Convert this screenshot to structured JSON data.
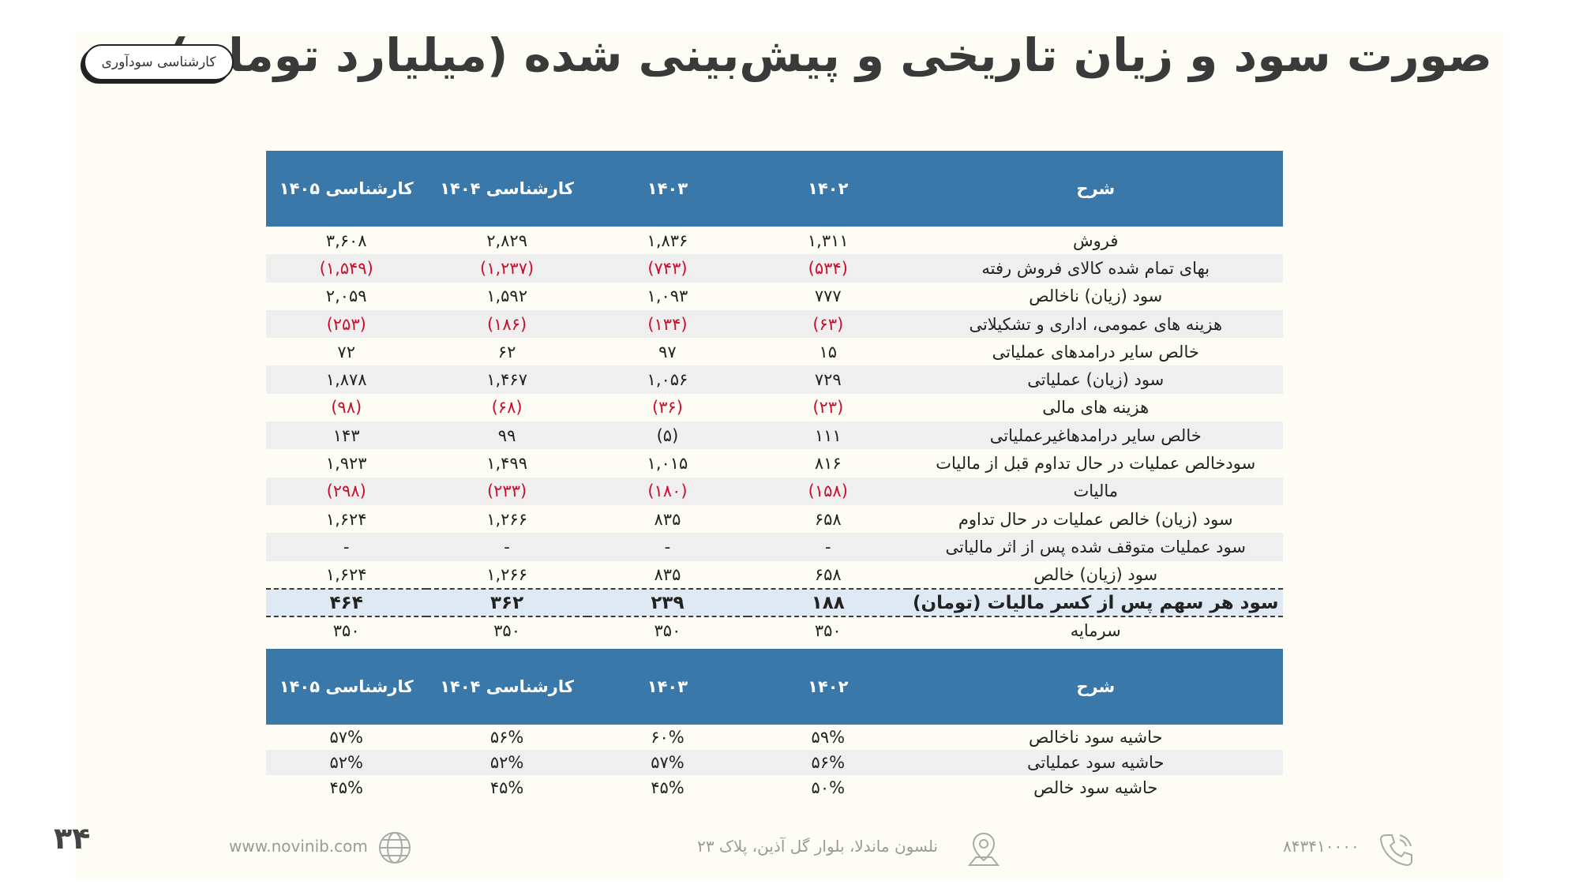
{
  "header": {
    "title": "صورت سود و زیان تاریخی و پیش‌بینی شده (میلیارد تومان)",
    "badge": "کارشناسی سودآوری"
  },
  "main_table": {
    "headers": [
      "شرح",
      "۱۴۰۲",
      "۱۴۰۳",
      "کارشناسی ۱۴۰۴",
      "کارشناسی ۱۴۰۵"
    ],
    "rows": [
      [
        "فروش",
        "۱,۳۱۱",
        "۱,۸۳۶",
        "۲,۸۲۹",
        "۳,۶۰۸"
      ],
      [
        "بهای تمام شده کالای فروش رفته",
        "(۵۳۴)",
        "(۷۴۳)",
        "(۱,۲۳۷)",
        "(۱,۵۴۹)"
      ],
      [
        "سود (زیان) ناخالص",
        "۷۷۷",
        "۱,۰۹۳",
        "۱,۵۹۲",
        "۲,۰۵۹"
      ],
      [
        "هزینه های عمومی، اداری و تشکیلاتی",
        "(۶۳)",
        "(۱۳۴)",
        "(۱۸۶)",
        "(۲۵۳)"
      ],
      [
        "خالص سایر درامدهای  عملیاتی",
        "۱۵",
        "۹۷",
        "۶۲",
        "۷۲"
      ],
      [
        "سود (زیان) عملیاتی",
        "۷۲۹",
        "۱,۰۵۶",
        "۱,۴۶۷",
        "۱,۸۷۸"
      ],
      [
        "هزینه های مالی",
        "(۲۳)",
        "(۳۶)",
        "(۶۸)",
        "(۹۸)"
      ],
      [
        "خالص سایر درامدهاغیرعملیاتی",
        "۱۱۱",
        "(۵)",
        "۹۹",
        "۱۴۳"
      ],
      [
        "سودخالص عملیات در حال تداوم قبل از مالیات",
        "۸۱۶",
        "۱,۰۱۵",
        "۱,۴۹۹",
        "۱,۹۲۳"
      ],
      [
        "مالیات",
        "(۱۵۸)",
        "(۱۸۰)",
        "(۲۳۳)",
        "(۲۹۸)"
      ],
      [
        "سود (زیان) خالص عملیات در حال تداوم",
        "۶۵۸",
        "۸۳۵",
        "۱,۲۶۶",
        "۱,۶۲۴"
      ],
      [
        "سود عملیات متوقف شده پس از اثر مالیاتی",
        "-",
        "-",
        "-",
        "-"
      ],
      [
        "سود (زیان) خالص",
        "۶۵۸",
        "۸۳۵",
        "۱,۲۶۶",
        "۱,۶۲۴"
      ],
      [
        "سود هر سهم پس از کسر مالیات (تومان)",
        "۱۸۸",
        "۲۳۹",
        "۳۶۲",
        "۴۶۴"
      ],
      [
        "سرمایه",
        "۳۵۰",
        "۳۵۰",
        "۳۵۰",
        "۳۵۰"
      ]
    ]
  },
  "margin_table": {
    "headers": [
      "شرح",
      "۱۴۰۲",
      "۱۴۰۳",
      "کارشناسی ۱۴۰۴",
      "کارشناسی ۱۴۰۵"
    ],
    "rows": [
      [
        "حاشیه سود ناخالص",
        "۵۹%",
        "۶۰%",
        "۵۶%",
        "۵۷%"
      ],
      [
        "حاشیه سود عملیاتی",
        "۵۶%",
        "۵۷%",
        "۵۲%",
        "۵۲%"
      ],
      [
        "حاشیه سود خالص",
        "۵۰%",
        "۴۵%",
        "۴۵%",
        "۴۵%"
      ]
    ]
  },
  "footer": {
    "page_number": "۳۴",
    "website": "www.novinib.com",
    "address": "نلسون ماندلا، بلوار گل آذین، پلاک ۲۳",
    "phone": "۸۴۳۴۱۰۰۰۰",
    "icons": [
      "globe-icon",
      "location-pin-icon",
      "phone-icon"
    ]
  },
  "colors": {
    "header_blue": "#3a78aa",
    "negative_red": "#c8102e",
    "eps_highlight": "#dfe9f4"
  }
}
